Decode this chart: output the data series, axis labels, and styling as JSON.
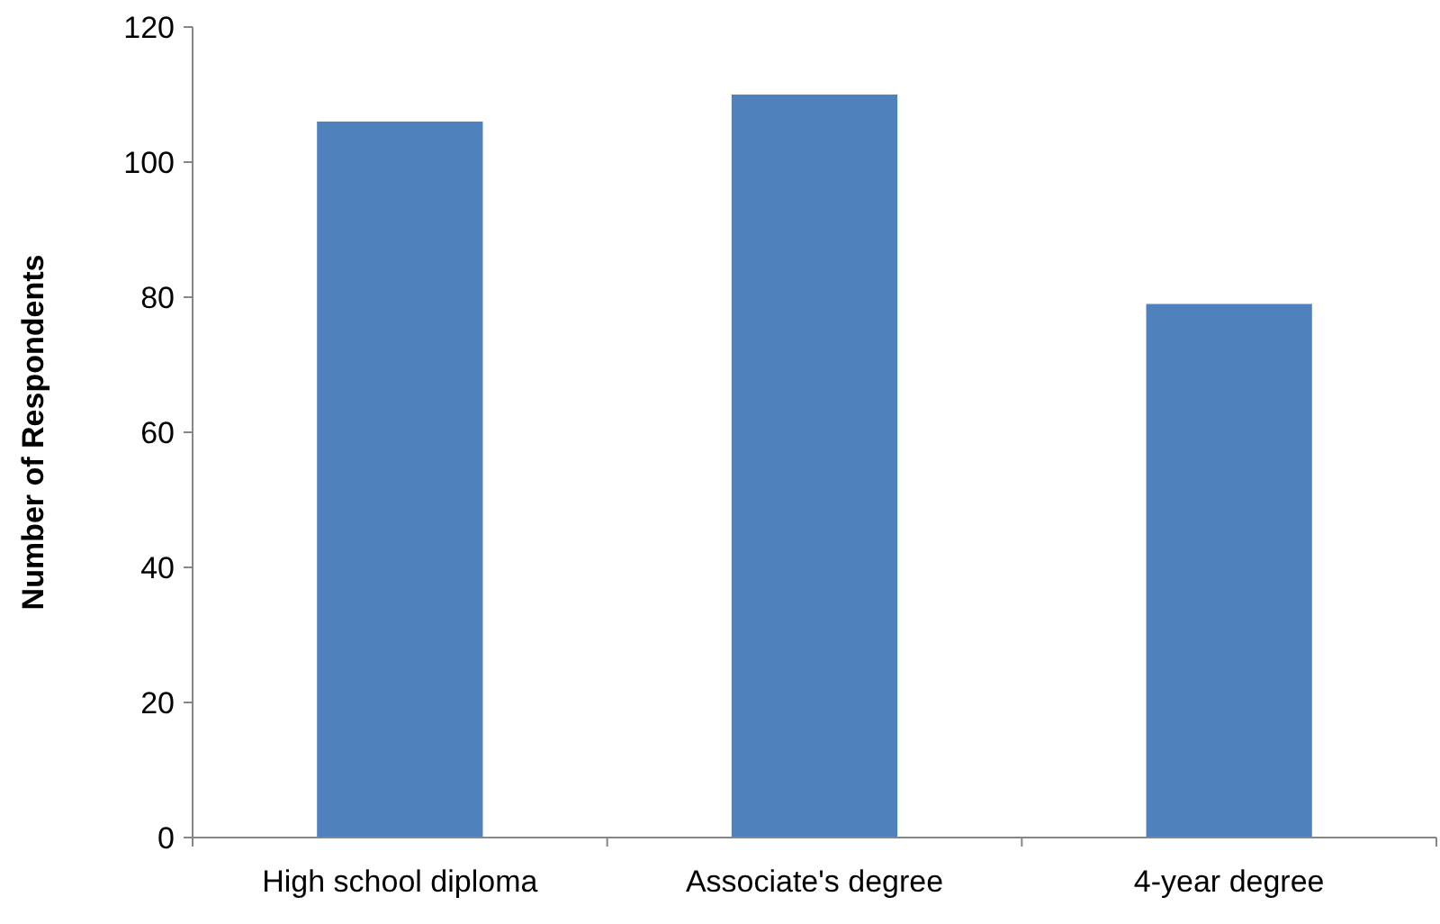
{
  "chart_data": {
    "type": "bar",
    "ylabel": "Number of Respondents",
    "categories": [
      "High school diploma",
      "Associate's degree",
      "4-year degree"
    ],
    "values": [
      106,
      110,
      79
    ],
    "color": "#4f81bd",
    "ylim": [
      0,
      120
    ],
    "yticks": [
      0,
      20,
      40,
      60,
      80,
      100,
      120
    ],
    "grid": false
  }
}
